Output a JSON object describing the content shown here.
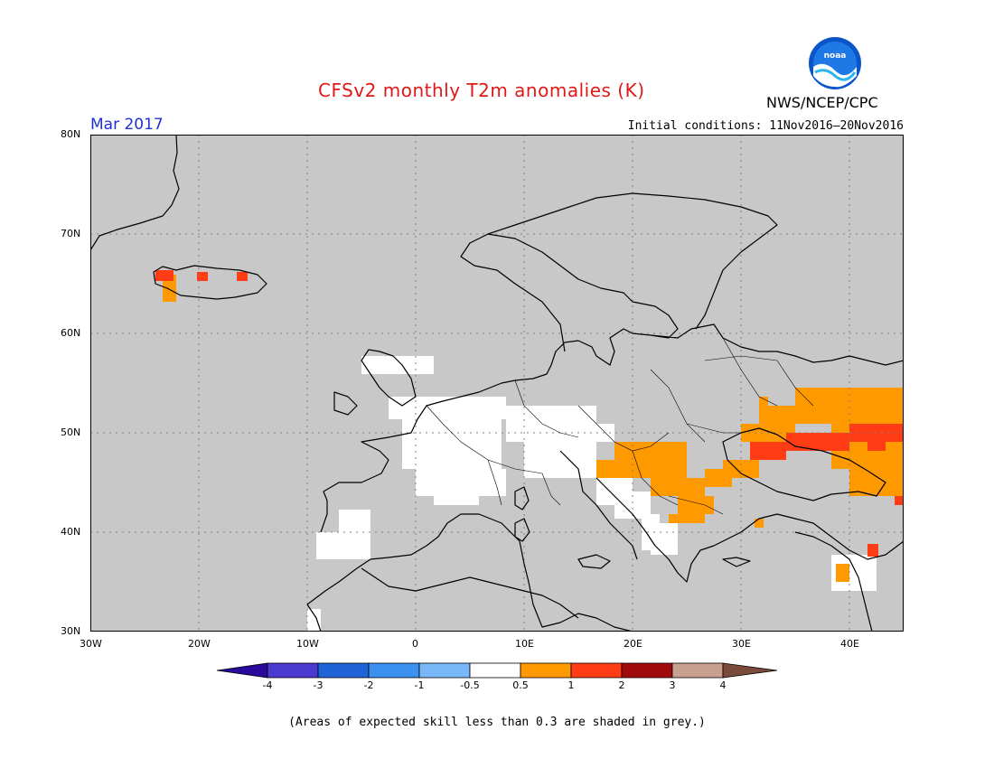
{
  "header": {
    "title": "CFSv2 monthly T2m anomalies (K)",
    "agency": "NWS/NCEP/CPC",
    "valid_month": "Mar 2017",
    "initial_conditions": "Initial conditions: 11Nov2016–20Nov2016"
  },
  "map": {
    "region": "Europe",
    "lon_range": [
      -30,
      45
    ],
    "lat_range": [
      30,
      80
    ],
    "lat_labels": [
      "80N",
      "70N",
      "60N",
      "50N",
      "40N",
      "30N"
    ],
    "lon_labels": [
      "30W",
      "20W",
      "10W",
      "0",
      "10E",
      "20E",
      "30E",
      "40E"
    ],
    "skill_mask_color": "#c8c8c8"
  },
  "legend": {
    "tick_labels": [
      "-4",
      "-3",
      "-2",
      "-1",
      "-0.5",
      "0.5",
      "1",
      "2",
      "3",
      "4"
    ],
    "colors": [
      "#2a0a9a",
      "#4a3ad0",
      "#1e64d8",
      "#3c90f0",
      "#78b8f8",
      "#ffffff",
      "#ff9900",
      "#ff3c14",
      "#a00a0a",
      "#c8a090",
      "#7a4a3a"
    ]
  },
  "footnote": "(Areas of expected skill less than 0.3 are shaded in grey.)"
}
